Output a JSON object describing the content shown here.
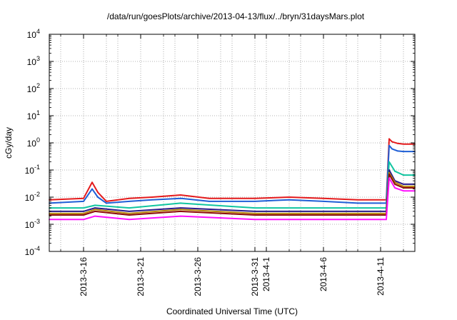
{
  "chart_data": {
    "type": "line",
    "title": "/data/run/goesPlots/archive/2013-04-13/flux/../bryn/31daysMars.plot",
    "xlabel": "Coordinated Universal Time (UTC)",
    "ylabel": "cGy/day",
    "y_scale": "log",
    "ylim": [
      0.0001,
      10000
    ],
    "xlim": [
      "2013-03-13T00:00",
      "2013-04-14T00:00"
    ],
    "y_ticks": [
      {
        "value": 0.0001,
        "base": "10",
        "exp": "-4"
      },
      {
        "value": 0.001,
        "base": "10",
        "exp": "-3"
      },
      {
        "value": 0.01,
        "base": "10",
        "exp": "-2"
      },
      {
        "value": 0.1,
        "base": "10",
        "exp": "-1"
      },
      {
        "value": 1,
        "base": "10",
        "exp": "0"
      },
      {
        "value": 10,
        "base": "10",
        "exp": "1"
      },
      {
        "value": 100,
        "base": "10",
        "exp": "2"
      },
      {
        "value": 1000,
        "base": "10",
        "exp": "3"
      },
      {
        "value": 10000,
        "base": "10",
        "exp": "4"
      }
    ],
    "x_ticks": [
      {
        "date": "2013-03-16",
        "label": "2013-3-16"
      },
      {
        "date": "2013-03-21",
        "label": "2013-3-21"
      },
      {
        "date": "2013-03-26",
        "label": "2013-3-26"
      },
      {
        "date": "2013-03-31",
        "label": "2013-3-31"
      },
      {
        "date": "2013-04-01",
        "label": "2013-4-1"
      },
      {
        "date": "2013-04-06",
        "label": "2013-4-6"
      },
      {
        "date": "2013-04-11",
        "label": "2013-4-11"
      }
    ],
    "x_minor_ticks": [
      "2013-03-14",
      "2013-03-18",
      "2013-03-19",
      "2013-03-23",
      "2013-03-24",
      "2013-03-28",
      "2013-03-29",
      "2013-04-03",
      "2013-04-04",
      "2013-04-08",
      "2013-04-09",
      "2013-04-13"
    ],
    "grid": true,
    "legend": "none",
    "series": [
      {
        "color": "#e41a1c",
        "x": [
          "2013-03-13T00:00",
          "2013-03-16T00:00",
          "2013-03-16T18:00",
          "2013-03-17T06:00",
          "2013-03-18T00:00",
          "2013-03-20T00:00",
          "2013-03-22T00:00",
          "2013-03-24T12:00",
          "2013-03-27T00:00",
          "2013-03-31T00:00",
          "2013-04-03T00:00",
          "2013-04-06T00:00",
          "2013-04-09T00:00",
          "2013-04-11T12:00",
          "2013-04-11T18:00",
          "2013-04-12T00:00",
          "2013-04-12T12:00",
          "2013-04-13T00:00",
          "2013-04-14T00:00"
        ],
        "y": [
          0.008,
          0.009,
          0.035,
          0.015,
          0.007,
          0.009,
          0.01,
          0.012,
          0.009,
          0.009,
          0.01,
          0.009,
          0.008,
          0.008,
          1.4,
          1.1,
          0.95,
          0.9,
          0.9
        ]
      },
      {
        "color": "#1f5fd6",
        "x": [
          "2013-03-13T00:00",
          "2013-03-16T00:00",
          "2013-03-16T18:00",
          "2013-03-17T06:00",
          "2013-03-18T00:00",
          "2013-03-20T00:00",
          "2013-03-22T00:00",
          "2013-03-24T12:00",
          "2013-03-27T00:00",
          "2013-03-31T00:00",
          "2013-04-03T00:00",
          "2013-04-06T00:00",
          "2013-04-09T00:00",
          "2013-04-11T12:00",
          "2013-04-11T18:00",
          "2013-04-12T00:00",
          "2013-04-12T12:00",
          "2013-04-13T00:00",
          "2013-04-14T00:00"
        ],
        "y": [
          0.006,
          0.007,
          0.02,
          0.01,
          0.006,
          0.007,
          0.008,
          0.009,
          0.007,
          0.007,
          0.008,
          0.007,
          0.006,
          0.006,
          0.8,
          0.6,
          0.5,
          0.48,
          0.48
        ]
      },
      {
        "color": "#11c5a0",
        "x": [
          "2013-03-13T00:00",
          "2013-03-16T00:00",
          "2013-03-17T00:00",
          "2013-03-20T00:00",
          "2013-03-24T12:00",
          "2013-03-31T00:00",
          "2013-04-06T00:00",
          "2013-04-11T12:00",
          "2013-04-11T18:00",
          "2013-04-12T06:00",
          "2013-04-13T00:00",
          "2013-04-14T00:00"
        ],
        "y": [
          0.004,
          0.004,
          0.005,
          0.004,
          0.006,
          0.004,
          0.004,
          0.004,
          0.2,
          0.09,
          0.065,
          0.065
        ]
      },
      {
        "color": "#2a1a8a",
        "x": [
          "2013-03-13T00:00",
          "2013-03-16T00:00",
          "2013-03-17T00:00",
          "2013-03-20T00:00",
          "2013-03-24T12:00",
          "2013-03-31T00:00",
          "2013-04-06T00:00",
          "2013-04-11T12:00",
          "2013-04-11T18:00",
          "2013-04-12T06:00",
          "2013-04-13T00:00",
          "2013-04-14T00:00"
        ],
        "y": [
          0.003,
          0.003,
          0.004,
          0.003,
          0.004,
          0.003,
          0.003,
          0.003,
          0.1,
          0.04,
          0.03,
          0.03
        ]
      },
      {
        "color": "#b8860b",
        "x": [
          "2013-03-13T00:00",
          "2013-03-16T00:00",
          "2013-03-17T00:00",
          "2013-03-20T00:00",
          "2013-03-24T12:00",
          "2013-03-31T00:00",
          "2013-04-06T00:00",
          "2013-04-11T12:00",
          "2013-04-11T18:00",
          "2013-04-12T06:00",
          "2013-04-13T00:00",
          "2013-04-14T00:00"
        ],
        "y": [
          0.0025,
          0.0025,
          0.0035,
          0.0025,
          0.0035,
          0.0025,
          0.0025,
          0.0025,
          0.08,
          0.035,
          0.025,
          0.025
        ]
      },
      {
        "color": "#8b0a0a",
        "x": [
          "2013-03-13T00:00",
          "2013-03-16T00:00",
          "2013-03-17T00:00",
          "2013-03-20T00:00",
          "2013-03-24T12:00",
          "2013-03-31T00:00",
          "2013-04-06T00:00",
          "2013-04-11T12:00",
          "2013-04-11T18:00",
          "2013-04-12T06:00",
          "2013-04-13T00:00",
          "2013-04-14T00:00"
        ],
        "y": [
          0.0022,
          0.0022,
          0.003,
          0.0022,
          0.003,
          0.0022,
          0.0022,
          0.0022,
          0.07,
          0.03,
          0.022,
          0.022
        ]
      },
      {
        "color": "#ff10ff",
        "x": [
          "2013-03-13T00:00",
          "2013-03-16T00:00",
          "2013-03-17T00:00",
          "2013-03-20T00:00",
          "2013-03-24T12:00",
          "2013-03-31T00:00",
          "2013-04-06T00:00",
          "2013-04-11T12:00",
          "2013-04-11T18:00",
          "2013-04-12T06:00",
          "2013-04-13T00:00",
          "2013-04-14T00:00"
        ],
        "y": [
          0.0015,
          0.0015,
          0.002,
          0.0015,
          0.002,
          0.0015,
          0.0015,
          0.0015,
          0.05,
          0.022,
          0.017,
          0.017
        ]
      }
    ]
  }
}
